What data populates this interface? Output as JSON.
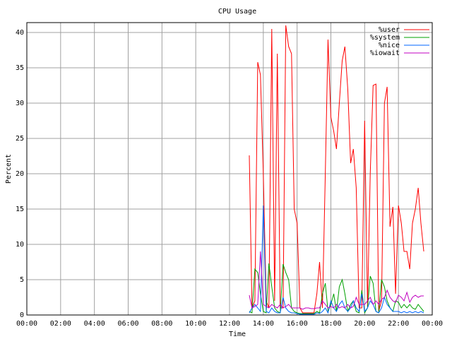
{
  "chart_data": {
    "type": "line",
    "title": "CPU Usage",
    "x_label": "Time",
    "y_label": "Percent",
    "x": [
      13.17,
      13.33,
      13.5,
      13.67,
      13.83,
      14,
      14.17,
      14.33,
      14.5,
      14.67,
      14.83,
      15,
      15.17,
      15.33,
      15.5,
      15.67,
      15.83,
      16,
      16.17,
      16.33,
      16.5,
      16.67,
      16.83,
      17,
      17.17,
      17.33,
      17.5,
      17.67,
      17.83,
      18,
      18.17,
      18.33,
      18.5,
      18.67,
      18.83,
      19,
      19.17,
      19.33,
      19.5,
      19.67,
      19.83,
      20,
      20.17,
      20.33,
      20.5,
      20.67,
      20.83,
      21,
      21.17,
      21.33,
      21.5,
      21.67,
      21.83,
      22,
      22.17,
      22.33,
      22.5,
      22.67,
      22.83,
      23,
      23.17,
      23.33,
      23.5
    ],
    "series": [
      {
        "name": "%user",
        "color": "#ff0000",
        "values": [
          22.6,
          1,
          2,
          35.8,
          34,
          20,
          2,
          1,
          40.5,
          2,
          37,
          1,
          1,
          41,
          38,
          37,
          15,
          13,
          1,
          0.3,
          0.3,
          0.3,
          0.3,
          0.3,
          3,
          7.5,
          1,
          20,
          39,
          28,
          26,
          23.5,
          30,
          36,
          38,
          32,
          21.5,
          23.5,
          18,
          1,
          1,
          27.5,
          1,
          20,
          32.5,
          32.7,
          0.5,
          2,
          30,
          32.3,
          12.5,
          15.3,
          3,
          15.5,
          13,
          9,
          9,
          6.5,
          13,
          15,
          18,
          13,
          9
        ]
      },
      {
        "name": "%system",
        "color": "#00a000",
        "values": [
          0.5,
          0.3,
          6.5,
          6,
          3,
          0.5,
          0.3,
          7.3,
          4,
          1,
          0.5,
          0.3,
          7.2,
          6,
          5,
          1,
          0.5,
          0.3,
          0.2,
          0.2,
          0.2,
          0.2,
          0.2,
          0.2,
          0.5,
          0.3,
          3,
          4.5,
          0.5,
          1.5,
          3,
          0.5,
          4,
          5,
          3,
          0.5,
          1.5,
          2,
          0.5,
          0.3,
          3.5,
          0.3,
          1,
          5.5,
          4.5,
          0.5,
          0.3,
          5,
          4,
          2,
          1,
          0.5,
          2,
          1.8,
          1,
          1.5,
          1,
          1.5,
          1,
          0.8,
          1.5,
          1,
          0.5
        ]
      },
      {
        "name": "%nice",
        "color": "#0066ff",
        "values": [
          0.3,
          1,
          1.5,
          1,
          0.5,
          15.5,
          0.5,
          0.3,
          1,
          0.5,
          0.3,
          0.3,
          2.5,
          1,
          0.5,
          0.3,
          0.3,
          0.2,
          0.1,
          0.1,
          0.1,
          0.1,
          0.1,
          0.1,
          0.3,
          0.2,
          0.5,
          1,
          0.3,
          2,
          1,
          0.5,
          1.5,
          2,
          1,
          0.5,
          1,
          2,
          1,
          0.5,
          3,
          0.5,
          1,
          2,
          1.5,
          0.5,
          0.3,
          1,
          2.5,
          1.5,
          1,
          0.5,
          0.5,
          0.5,
          0.3,
          0.5,
          0.3,
          0.5,
          0.3,
          0.5,
          0.3,
          0.5,
          0.3
        ]
      },
      {
        "name": "%iowait",
        "color": "#c000c0",
        "values": [
          2.8,
          1,
          1.2,
          1.5,
          9,
          1.5,
          1.2,
          1,
          1.5,
          1.2,
          1,
          1.5,
          1,
          1.2,
          1.5,
          1,
          1,
          1,
          1,
          0.8,
          1,
          1,
          0.9,
          0.9,
          1,
          1,
          2,
          1.5,
          1,
          1.2,
          1,
          1.5,
          1,
          1.2,
          1,
          1.5,
          1,
          1.2,
          2.5,
          1.5,
          1.5,
          1.5,
          2,
          2.5,
          1.5,
          2,
          1.5,
          2.2,
          2.5,
          3.5,
          2.5,
          2,
          1.8,
          2.8,
          2.5,
          2,
          3.2,
          1.8,
          2.5,
          2.8,
          2.5,
          2.7,
          2.7
        ]
      }
    ],
    "xlim": [
      0,
      24
    ],
    "xticks": [
      {
        "value": 0,
        "label": "00:00"
      },
      {
        "value": 2,
        "label": "02:00"
      },
      {
        "value": 4,
        "label": "04:00"
      },
      {
        "value": 6,
        "label": "06:00"
      },
      {
        "value": 8,
        "label": "08:00"
      },
      {
        "value": 10,
        "label": "10:00"
      },
      {
        "value": 12,
        "label": "12:00"
      },
      {
        "value": 14,
        "label": "14:00"
      },
      {
        "value": 16,
        "label": "16:00"
      },
      {
        "value": 18,
        "label": "18:00"
      },
      {
        "value": 20,
        "label": "20:00"
      },
      {
        "value": 22,
        "label": "22:00"
      },
      {
        "value": 24,
        "label": "00:00"
      }
    ],
    "ylim": [
      0,
      41.4
    ],
    "yticks": [
      0,
      5,
      10,
      15,
      20,
      25,
      30,
      35,
      40
    ],
    "grid": true,
    "legend": "top-right"
  }
}
